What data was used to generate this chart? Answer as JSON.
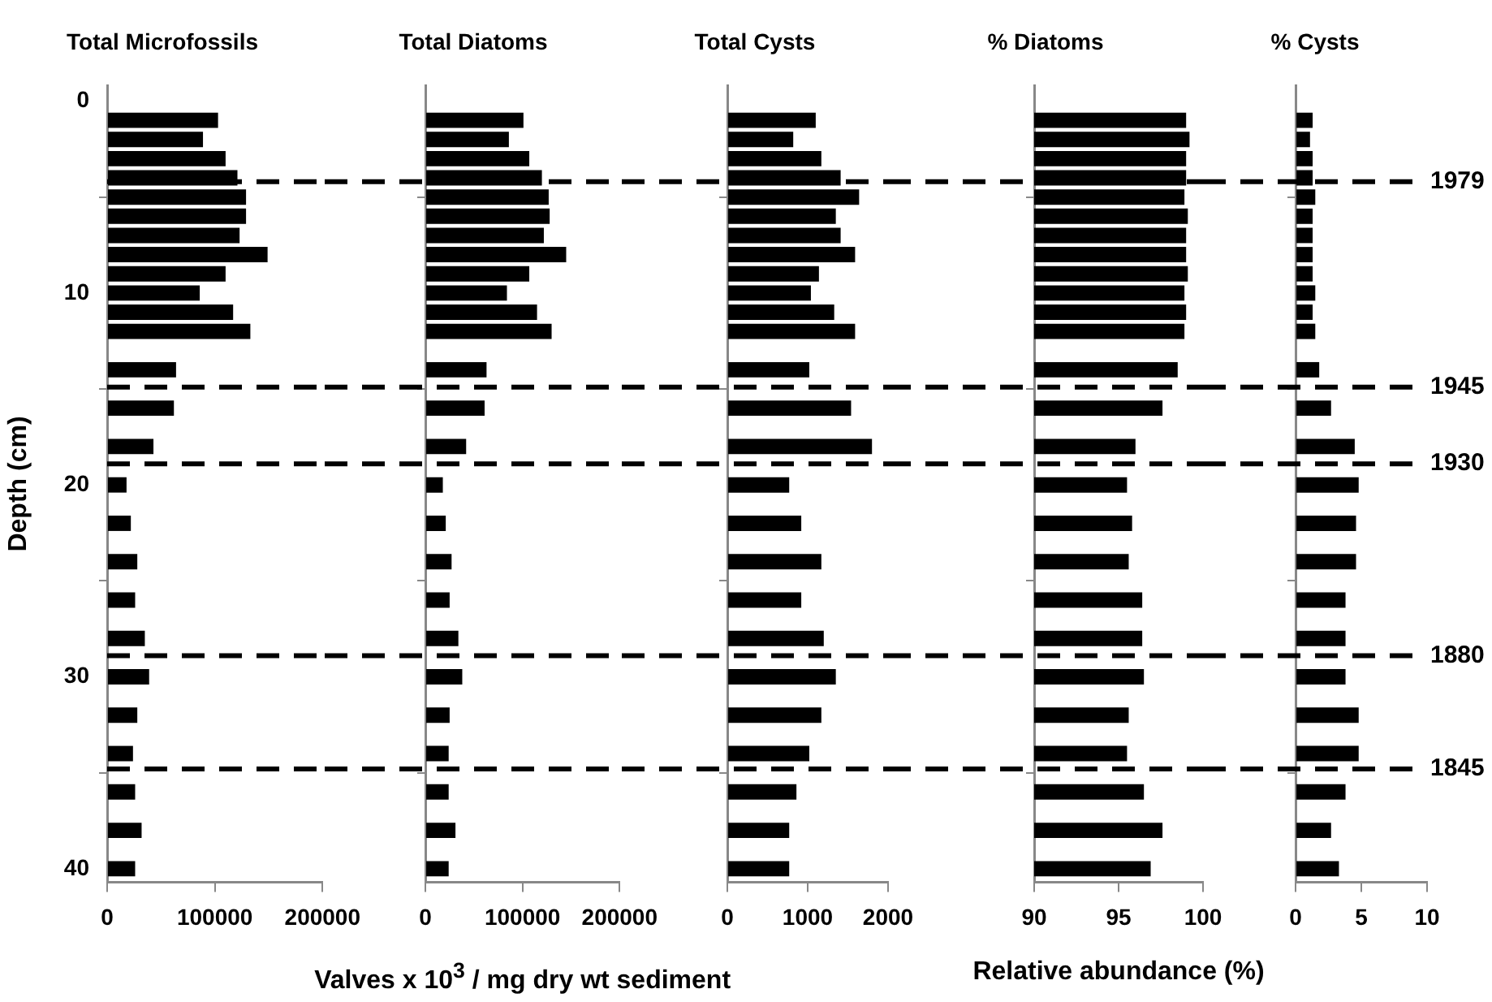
{
  "chart_data": [
    {
      "type": "bar",
      "orientation": "horizontal",
      "title": "Total Microfossils",
      "ylabel": "Depth (cm)",
      "color": "#000000",
      "x": [
        1,
        2,
        3,
        4,
        5,
        6,
        7,
        8,
        9,
        10,
        11,
        12,
        14,
        16,
        18,
        20,
        22,
        24,
        26,
        28,
        30,
        32,
        34,
        36,
        38,
        40
      ],
      "values": [
        103000,
        89000,
        110000,
        121000,
        129000,
        129000,
        123000,
        149000,
        110000,
        86000,
        117000,
        133000,
        64000,
        62000,
        43000,
        18000,
        22000,
        28000,
        26000,
        35000,
        39000,
        28000,
        24000,
        26000,
        32000,
        26000
      ],
      "xlim": [
        0,
        200000
      ],
      "xticks": [
        0,
        100000,
        200000
      ],
      "ylim": [
        40.7,
        -0.8
      ],
      "yticks": [
        0,
        10,
        20,
        30,
        40
      ],
      "ref_lines": [
        {
          "axis": "y",
          "value": 4.2,
          "line_style": "dashed"
        },
        {
          "axis": "y",
          "value": 14.9,
          "line_style": "dashed"
        },
        {
          "axis": "y",
          "value": 18.9,
          "line_style": "dashed"
        },
        {
          "axis": "y",
          "value": 28.9,
          "line_style": "dashed"
        },
        {
          "axis": "y",
          "value": 34.8,
          "line_style": "dashed"
        }
      ]
    },
    {
      "type": "bar",
      "orientation": "horizontal",
      "title": "Total Diatoms",
      "xlabel": "Valves x 10$^{3}$ / mg dry wt sediment",
      "color": "#000000",
      "tick_labels": "x",
      "x": [
        1,
        2,
        3,
        4,
        5,
        6,
        7,
        8,
        9,
        10,
        11,
        12,
        14,
        16,
        18,
        20,
        22,
        24,
        26,
        28,
        30,
        32,
        34,
        36,
        38,
        40
      ],
      "values": [
        101000,
        86000,
        107000,
        120000,
        127000,
        128000,
        122000,
        145000,
        107000,
        84000,
        115000,
        130000,
        63000,
        61000,
        42000,
        18000,
        21000,
        27000,
        25000,
        34000,
        38000,
        25000,
        24000,
        24000,
        31000,
        24000
      ],
      "xlim": [
        0,
        200000
      ],
      "xticks": [
        0,
        100000,
        200000
      ],
      "ylim": [
        40.7,
        -0.8
      ],
      "yticks": [
        0,
        10,
        20,
        30,
        40
      ],
      "ref_lines": [
        {
          "axis": "y",
          "value": 4.2,
          "line_style": "dashed"
        },
        {
          "axis": "y",
          "value": 14.9,
          "line_style": "dashed"
        },
        {
          "axis": "y",
          "value": 18.9,
          "line_style": "dashed"
        },
        {
          "axis": "y",
          "value": 28.9,
          "line_style": "dashed"
        },
        {
          "axis": "y",
          "value": 34.8,
          "line_style": "dashed"
        }
      ]
    },
    {
      "type": "bar",
      "orientation": "horizontal",
      "title": "Total Cysts",
      "color": "#000000",
      "tick_labels": "x",
      "x": [
        1,
        2,
        3,
        4,
        5,
        6,
        7,
        8,
        9,
        10,
        11,
        12,
        14,
        16,
        18,
        20,
        22,
        24,
        26,
        28,
        30,
        32,
        34,
        36,
        38,
        40
      ],
      "values": [
        1100,
        820,
        1170,
        1410,
        1640,
        1350,
        1410,
        1590,
        1140,
        1040,
        1330,
        1590,
        1020,
        1540,
        1800,
        770,
        920,
        1170,
        920,
        1200,
        1350,
        1170,
        1020,
        860,
        770,
        770
      ],
      "xlim": [
        0,
        2000
      ],
      "xticks": [
        0,
        1000,
        2000
      ],
      "ylim": [
        40.7,
        -0.8
      ],
      "yticks": [
        0,
        10,
        20,
        30,
        40
      ],
      "ref_lines": [
        {
          "axis": "y",
          "value": 4.2,
          "line_style": "dashed"
        },
        {
          "axis": "y",
          "value": 14.9,
          "line_style": "dashed"
        },
        {
          "axis": "y",
          "value": 18.9,
          "line_style": "dashed"
        },
        {
          "axis": "y",
          "value": 28.9,
          "line_style": "dashed"
        },
        {
          "axis": "y",
          "value": 34.8,
          "line_style": "dashed"
        }
      ]
    },
    {
      "type": "bar",
      "orientation": "horizontal",
      "title": "% Diatoms",
      "xlabel": "Relative abundance (%)",
      "color": "#000000",
      "tick_labels": "x",
      "x": [
        1,
        2,
        3,
        4,
        5,
        6,
        7,
        8,
        9,
        10,
        11,
        12,
        14,
        16,
        18,
        20,
        22,
        24,
        26,
        28,
        30,
        32,
        34,
        36,
        38,
        40
      ],
      "values": [
        99.0,
        99.2,
        99.0,
        99.0,
        98.9,
        99.1,
        99.0,
        99.0,
        99.1,
        98.9,
        99.0,
        98.9,
        98.5,
        97.6,
        96.0,
        95.5,
        95.8,
        95.6,
        96.4,
        96.4,
        96.5,
        95.6,
        95.5,
        96.5,
        97.6,
        96.9
      ],
      "xlim": [
        90,
        100
      ],
      "xticks": [
        90,
        95,
        100
      ],
      "ylim": [
        40.7,
        -0.8
      ],
      "yticks": [
        0,
        10,
        20,
        30,
        40
      ],
      "ref_lines": [
        {
          "axis": "y",
          "value": 4.2,
          "line_style": "dashed"
        },
        {
          "axis": "y",
          "value": 14.9,
          "line_style": "dashed"
        },
        {
          "axis": "y",
          "value": 18.9,
          "line_style": "dashed"
        },
        {
          "axis": "y",
          "value": 28.9,
          "line_style": "dashed"
        },
        {
          "axis": "y",
          "value": 34.8,
          "line_style": "dashed"
        }
      ]
    },
    {
      "type": "bar",
      "orientation": "horizontal",
      "title": "% Cysts",
      "color": "#000000",
      "tick_labels": "x",
      "x": [
        1,
        2,
        3,
        4,
        5,
        6,
        7,
        8,
        9,
        10,
        11,
        12,
        14,
        16,
        18,
        20,
        22,
        24,
        26,
        28,
        30,
        32,
        34,
        36,
        38,
        40
      ],
      "values": [
        1.3,
        1.1,
        1.3,
        1.3,
        1.5,
        1.3,
        1.3,
        1.3,
        1.3,
        1.5,
        1.3,
        1.5,
        1.8,
        2.7,
        4.5,
        4.8,
        4.6,
        4.6,
        3.8,
        3.8,
        3.8,
        4.8,
        4.8,
        3.8,
        2.7,
        3.3
      ],
      "xlim": [
        0,
        10
      ],
      "xticks": [
        0,
        5,
        10
      ],
      "ylim": [
        40.7,
        -0.8
      ],
      "yticks": [
        0,
        10,
        20,
        30,
        40
      ],
      "ref_lines": [
        {
          "axis": "y",
          "value": 4.2,
          "line_style": "dashed"
        },
        {
          "axis": "y",
          "value": 14.9,
          "line_style": "dashed"
        },
        {
          "axis": "y",
          "value": 18.9,
          "line_style": "dashed"
        },
        {
          "axis": "y",
          "value": 28.9,
          "line_style": "dashed"
        },
        {
          "axis": "y",
          "value": 34.8,
          "line_style": "dashed"
        }
      ],
      "annotations": [
        "1979",
        "1945",
        "1930",
        "1880",
        "1845"
      ]
    }
  ]
}
